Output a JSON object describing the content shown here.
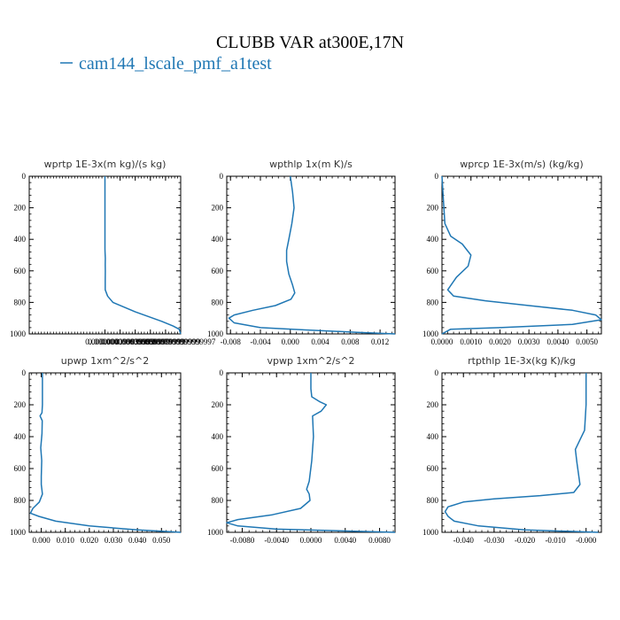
{
  "figure": {
    "title": "CLUBB VAR at300E,17N",
    "legend_label": "cam144_lscale_pmf_a1test",
    "line_color": "#1f77b4"
  },
  "chart_data": [
    {
      "type": "line",
      "title": "wprtp  1E-3x(m kg)/(s kg)",
      "xlim": [
        -1e-07,
        1e-07
      ],
      "ylim": [
        1000,
        0
      ],
      "x_tick_values": [
        0.0,
        2e-08,
        4e-08,
        6e-08,
        8e-08,
        1e-07
      ],
      "x_tick_labels": [
        "0.0000000",
        "0.0000000199999999",
        "0.0000000399999999",
        "0.0000000599999999",
        "0.0000000799999999",
        "0.0000000999999997"
      ],
      "y_ticks": [
        0,
        200,
        400,
        600,
        800,
        1000
      ],
      "series": [
        {
          "x": [
            0.0,
            0.0,
            0.0,
            0.0,
            0.0,
            0.0,
            0.0,
            1e-10,
            5e-10,
            3e-10,
            5e-10,
            4e-10,
            4e-10,
            3.5e-09,
            1.05e-08,
            4e-08,
            7.5e-08,
            9e-08,
            9.8e-08,
            1e-07
          ],
          "y": [
            0,
            100,
            200,
            300,
            400,
            430,
            460,
            480,
            520,
            560,
            600,
            660,
            720,
            760,
            800,
            860,
            920,
            950,
            970,
            1000
          ]
        }
      ]
    },
    {
      "type": "line",
      "title": "wpthlp  1x(m K)/s",
      "xlim": [
        -0.0085,
        0.014
      ],
      "ylim": [
        1000,
        0
      ],
      "x_tick_values": [
        -0.008,
        -0.004,
        0.0,
        0.004,
        0.008,
        0.012
      ],
      "x_tick_labels": [
        "-0.008",
        "-0.004",
        "0.000",
        "0.004",
        "0.008",
        "0.012"
      ],
      "y_ticks": [
        0,
        200,
        400,
        600,
        800,
        1000
      ],
      "series": [
        {
          "x": [
            0.0,
            0.0003,
            0.0005,
            0.0002,
            -0.0002,
            -0.0005,
            -0.0005,
            -0.0002,
            0.0003,
            0.0006,
            0.0001,
            -0.002,
            -0.005,
            -0.0075,
            -0.0082,
            -0.0075,
            -0.004,
            0.002,
            0.009,
            0.014
          ],
          "y": [
            0,
            100,
            200,
            300,
            400,
            470,
            540,
            620,
            690,
            740,
            780,
            820,
            850,
            880,
            900,
            930,
            960,
            975,
            990,
            1000
          ]
        }
      ]
    },
    {
      "type": "line",
      "title": "wprcp  1E-3x(m/s) (kg/kg)",
      "xlim": [
        0.0,
        0.0055
      ],
      "ylim": [
        1000,
        0
      ],
      "x_tick_values": [
        0.0,
        0.001,
        0.002,
        0.003,
        0.004,
        0.005
      ],
      "x_tick_labels": [
        "0.0000",
        "0.0010",
        "0.0020",
        "0.0030",
        "0.0040",
        "0.0050"
      ],
      "y_ticks": [
        0,
        200,
        400,
        600,
        800,
        1000
      ],
      "series": [
        {
          "x": [
            0.0,
            5e-05,
            0.0001,
            0.0003,
            0.0007,
            0.001,
            0.0009,
            0.0005,
            0.0002,
            0.0004,
            0.0015,
            0.003,
            0.0045,
            0.0053,
            0.0055,
            0.0045,
            0.002,
            0.0003,
            0.0
          ],
          "y": [
            0,
            150,
            300,
            380,
            430,
            500,
            570,
            640,
            720,
            760,
            790,
            820,
            850,
            880,
            910,
            940,
            960,
            970,
            1000
          ]
        }
      ]
    },
    {
      "type": "line",
      "title": "upwp  1xm^2/s^2",
      "xlim": [
        -0.005,
        0.058
      ],
      "ylim": [
        1000,
        0
      ],
      "x_tick_values": [
        0.0,
        0.01,
        0.02,
        0.03,
        0.04,
        0.05
      ],
      "x_tick_labels": [
        "0.000",
        "0.010",
        "0.020",
        "0.030",
        "0.040",
        "0.050"
      ],
      "y_ticks": [
        0,
        200,
        400,
        600,
        800,
        1000
      ],
      "series": [
        {
          "x": [
            0.0005,
            0.0005,
            0.0005,
            0.0003,
            -0.0005,
            0.0004,
            0.0003,
            -0.0002,
            0.0002,
            0.0,
            0.0,
            0.0005,
            -0.0008,
            -0.0035,
            -0.0045,
            -0.001,
            0.006,
            0.02,
            0.04,
            0.058
          ],
          "y": [
            0,
            100,
            200,
            250,
            270,
            300,
            380,
            470,
            550,
            650,
            700,
            760,
            810,
            850,
            880,
            900,
            930,
            960,
            985,
            1000
          ]
        }
      ]
    },
    {
      "type": "line",
      "title": "vpwp  1xm^2/s^2",
      "xlim": [
        -0.0098,
        0.0098
      ],
      "ylim": [
        1000,
        0
      ],
      "x_tick_values": [
        -0.008,
        -0.004,
        0.0,
        0.004,
        0.008
      ],
      "x_tick_labels": [
        "-0.0080",
        "-0.0040",
        "0.0000",
        "0.0040",
        "0.0080"
      ],
      "y_ticks": [
        0,
        200,
        400,
        600,
        800,
        1000
      ],
      "series": [
        {
          "x": [
            0.0,
            0.0,
            0.0001,
            0.001,
            0.0018,
            0.0012,
            0.0002,
            0.0003,
            0.0001,
            -0.0002,
            -0.0005,
            -0.0002,
            -0.0001,
            -0.0012,
            -0.0045,
            -0.0085,
            -0.0098,
            -0.0085,
            -0.004,
            0.0098
          ],
          "y": [
            0,
            100,
            150,
            180,
            200,
            240,
            270,
            400,
            550,
            680,
            730,
            760,
            800,
            850,
            890,
            920,
            940,
            960,
            980,
            1000
          ]
        }
      ]
    },
    {
      "type": "line",
      "title": "rtpthlp  1E-3x(kg K)/kg",
      "xlim": [
        -0.047,
        0.005
      ],
      "ylim": [
        1000,
        0
      ],
      "x_tick_values": [
        -0.04,
        -0.03,
        -0.02,
        -0.01,
        0.0
      ],
      "x_tick_labels": [
        "-0.040",
        "-0.030",
        "-0.020",
        "-0.010",
        "-0.000"
      ],
      "y_ticks": [
        0,
        200,
        400,
        600,
        800,
        1000
      ],
      "series": [
        {
          "x": [
            0.0,
            0.0,
            -0.0005,
            -0.002,
            -0.0035,
            -0.003,
            -0.002,
            -0.004,
            -0.015,
            -0.03,
            -0.04,
            -0.045,
            -0.046,
            -0.045,
            -0.043,
            -0.035,
            -0.02,
            0.004
          ],
          "y": [
            0,
            200,
            360,
            420,
            480,
            560,
            700,
            750,
            770,
            790,
            810,
            840,
            870,
            900,
            930,
            960,
            985,
            1000
          ]
        }
      ]
    }
  ]
}
